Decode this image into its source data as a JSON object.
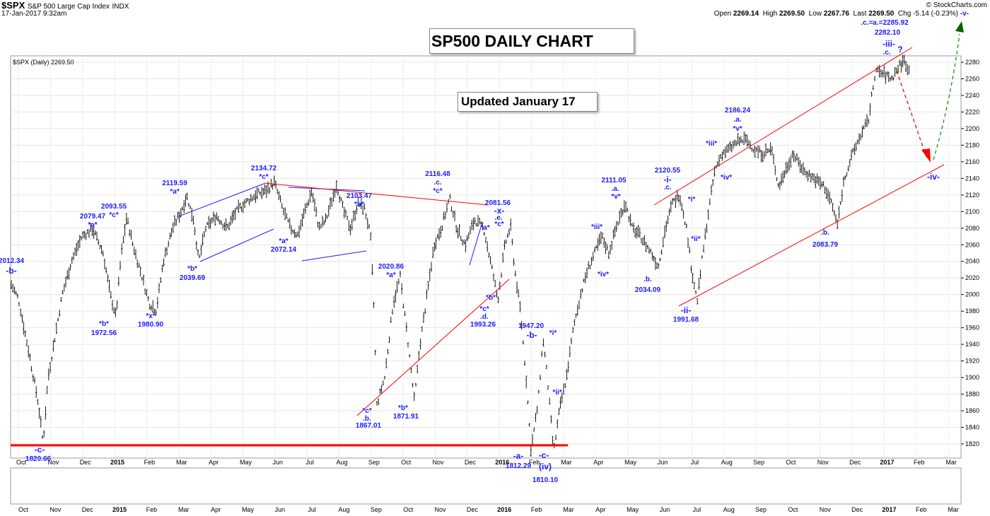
{
  "header": {
    "symbol": "$SPX",
    "name": "S&P 500 Large Cap Index",
    "exchange": "INDX",
    "datetime": "17-Jan-2017 9:32am",
    "credit": "© StockCharts.com",
    "open_label": "Open",
    "open": "2269.14",
    "high_label": "High",
    "high": "2269.50",
    "low_label": "Low",
    "low": "2267.76",
    "last_label": "Last",
    "last": "2269.50",
    "chg_label": "Chg",
    "chg": "-5.14 (-0.23%)",
    "chg_marker": "-v-"
  },
  "legend": "$SPX (Daily) 2269.50",
  "title_box": "SP500 DAILY CHART",
  "updated_box": "Updated January 17",
  "chart_data": {
    "type": "candlestick",
    "y_ticks": [
      1820,
      1840,
      1860,
      1880,
      1900,
      1920,
      1940,
      1960,
      1980,
      2000,
      2020,
      2040,
      2060,
      2080,
      2100,
      2120,
      2140,
      2160,
      2180,
      2200,
      2220,
      2240,
      2260,
      2280
    ],
    "ylim": [
      1808,
      2292
    ],
    "x_months": [
      "Oct",
      "Nov",
      "Dec",
      "2015",
      "Feb",
      "Mar",
      "Apr",
      "May",
      "Jun",
      "Jul",
      "Aug",
      "Sep",
      "Oct",
      "Nov",
      "Dec",
      "2016",
      "Feb",
      "Mar",
      "Apr",
      "May",
      "Jun",
      "Jul",
      "Aug",
      "Sep",
      "Oct",
      "Nov",
      "Dec",
      "2017",
      "Feb",
      "Mar"
    ],
    "x_months_bold": [
      "2015",
      "2016",
      "2017"
    ],
    "price_path": [
      [
        0,
        2012
      ],
      [
        10,
        1995
      ],
      [
        25,
        1930
      ],
      [
        38,
        1870
      ],
      [
        45,
        1821
      ],
      [
        52,
        1900
      ],
      [
        62,
        1950
      ],
      [
        72,
        2000
      ],
      [
        85,
        2040
      ],
      [
        100,
        2070
      ],
      [
        115,
        2079
      ],
      [
        130,
        2050
      ],
      [
        140,
        2000
      ],
      [
        148,
        1973
      ],
      [
        155,
        2045
      ],
      [
        163,
        2093
      ],
      [
        172,
        2060
      ],
      [
        182,
        2030
      ],
      [
        195,
        1990
      ],
      [
        205,
        1981
      ],
      [
        215,
        2040
      ],
      [
        228,
        2080
      ],
      [
        240,
        2100
      ],
      [
        248,
        2119
      ],
      [
        258,
        2090
      ],
      [
        265,
        2040
      ],
      [
        275,
        2080
      ],
      [
        290,
        2095
      ],
      [
        305,
        2080
      ],
      [
        318,
        2100
      ],
      [
        330,
        2110
      ],
      [
        345,
        2120
      ],
      [
        360,
        2125
      ],
      [
        372,
        2135
      ],
      [
        385,
        2100
      ],
      [
        395,
        2080
      ],
      [
        405,
        2072
      ],
      [
        415,
        2100
      ],
      [
        425,
        2125
      ],
      [
        435,
        2080
      ],
      [
        445,
        2090
      ],
      [
        460,
        2133
      ],
      [
        470,
        2100
      ],
      [
        480,
        2080
      ],
      [
        490,
        2110
      ],
      [
        500,
        2103
      ],
      [
        508,
        2070
      ],
      [
        513,
        1980
      ],
      [
        517,
        1867
      ],
      [
        528,
        1900
      ],
      [
        540,
        1990
      ],
      [
        550,
        2021
      ],
      [
        560,
        1950
      ],
      [
        570,
        1872
      ],
      [
        578,
        1940
      ],
      [
        588,
        2000
      ],
      [
        598,
        2060
      ],
      [
        608,
        2080
      ],
      [
        620,
        2116
      ],
      [
        630,
        2080
      ],
      [
        642,
        2060
      ],
      [
        655,
        2090
      ],
      [
        668,
        2080
      ],
      [
        680,
        2030
      ],
      [
        688,
        1993
      ],
      [
        698,
        2060
      ],
      [
        706,
        2082
      ],
      [
        712,
        2030
      ],
      [
        720,
        1980
      ],
      [
        728,
        1900
      ],
      [
        735,
        1812
      ],
      [
        745,
        1870
      ],
      [
        752,
        1947
      ],
      [
        758,
        1900
      ],
      [
        767,
        1810
      ],
      [
        775,
        1860
      ],
      [
        785,
        1900
      ],
      [
        795,
        1960
      ],
      [
        805,
        2000
      ],
      [
        815,
        2030
      ],
      [
        825,
        2050
      ],
      [
        835,
        2070
      ],
      [
        845,
        2050
      ],
      [
        855,
        2080
      ],
      [
        868,
        2111
      ],
      [
        878,
        2080
      ],
      [
        890,
        2070
      ],
      [
        905,
        2050
      ],
      [
        915,
        2034
      ],
      [
        925,
        2080
      ],
      [
        935,
        2110
      ],
      [
        945,
        2121
      ],
      [
        955,
        2080
      ],
      [
        962,
        2030
      ],
      [
        970,
        1992
      ],
      [
        978,
        2050
      ],
      [
        986,
        2100
      ],
      [
        995,
        2150
      ],
      [
        1005,
        2170
      ],
      [
        1015,
        2175
      ],
      [
        1028,
        2185
      ],
      [
        1040,
        2186
      ],
      [
        1050,
        2175
      ],
      [
        1062,
        2170
      ],
      [
        1075,
        2175
      ],
      [
        1085,
        2130
      ],
      [
        1095,
        2150
      ],
      [
        1105,
        2170
      ],
      [
        1120,
        2150
      ],
      [
        1135,
        2140
      ],
      [
        1150,
        2130
      ],
      [
        1160,
        2110
      ],
      [
        1168,
        2084
      ],
      [
        1178,
        2140
      ],
      [
        1190,
        2170
      ],
      [
        1200,
        2190
      ],
      [
        1212,
        2210
      ],
      [
        1222,
        2270
      ],
      [
        1235,
        2265
      ],
      [
        1245,
        2260
      ],
      [
        1255,
        2275
      ],
      [
        1263,
        2282
      ],
      [
        1270,
        2269
      ]
    ],
    "annotations": [
      {
        "text": "2012.34",
        "x": 16,
        "y": 372
      },
      {
        "text": "-b-",
        "x": 16,
        "y": 387,
        "big": true
      },
      {
        "text": "-c-",
        "x": 56,
        "y": 640,
        "big": true
      },
      {
        "text": "1820.66",
        "x": 54,
        "y": 652
      },
      {
        "text": "2079.47",
        "x": 131,
        "y": 309
      },
      {
        "text": "*a*",
        "x": 131,
        "y": 321
      },
      {
        "text": "*b*",
        "x": 147,
        "y": 461
      },
      {
        "text": "1972.56",
        "x": 147,
        "y": 474
      },
      {
        "text": "2093.55",
        "x": 161,
        "y": 295
      },
      {
        "text": "*c*",
        "x": 161,
        "y": 307
      },
      {
        "text": "*x*",
        "x": 213,
        "y": 450
      },
      {
        "text": "1980.90",
        "x": 213,
        "y": 462
      },
      {
        "text": "2119.59",
        "x": 247,
        "y": 262
      },
      {
        "text": "*a*",
        "x": 247,
        "y": 274
      },
      {
        "text": "*b*",
        "x": 272,
        "y": 383
      },
      {
        "text": "2039.69",
        "x": 272,
        "y": 396
      },
      {
        "text": "2134.72",
        "x": 373,
        "y": 241
      },
      {
        "text": "*c*",
        "x": 373,
        "y": 253
      },
      {
        "text": "*a*",
        "x": 401,
        "y": 344
      },
      {
        "text": "2072.14",
        "x": 401,
        "y": 356
      },
      {
        "text": "2103.47",
        "x": 508,
        "y": 280
      },
      {
        "text": "*b*",
        "x": 508,
        "y": 292
      },
      {
        "text": "2020.86",
        "x": 553,
        "y": 380
      },
      {
        "text": "*a*",
        "x": 553,
        "y": 392
      },
      {
        "text": "*c*",
        "x": 519,
        "y": 584
      },
      {
        "text": ".b.",
        "x": 519,
        "y": 595
      },
      {
        "text": "1867.01",
        "x": 521,
        "y": 605
      },
      {
        "text": "*b*",
        "x": 570,
        "y": 580
      },
      {
        "text": "1871.91",
        "x": 574,
        "y": 592
      },
      {
        "text": "2116.48",
        "x": 619,
        "y": 249
      },
      {
        "text": ".c.",
        "x": 619,
        "y": 261
      },
      {
        "text": "*c*",
        "x": 619,
        "y": 273
      },
      {
        "text": "2081.56",
        "x": 704,
        "y": 290
      },
      {
        "text": "-x-",
        "x": 706,
        "y": 302,
        "big": true
      },
      {
        "text": ".e.",
        "x": 705,
        "y": 311
      },
      {
        "text": "*c*",
        "x": 706,
        "y": 320
      },
      {
        "text": "*a*",
        "x": 686,
        "y": 325
      },
      {
        "text": "*b*",
        "x": 694,
        "y": 424
      },
      {
        "text": "*c*",
        "x": 685,
        "y": 440
      },
      {
        "text": ".d.",
        "x": 685,
        "y": 451
      },
      {
        "text": "1993.26",
        "x": 683,
        "y": 462
      },
      {
        "text": "-a-",
        "x": 733,
        "y": 649,
        "big": true
      },
      {
        "text": "1812.29",
        "x": 733,
        "y": 662
      },
      {
        "text": "1947.20",
        "x": 751,
        "y": 464
      },
      {
        "text": "-b-",
        "x": 752,
        "y": 478,
        "big": true
      },
      {
        "text": "*i*",
        "x": 782,
        "y": 474
      },
      {
        "text": "*ii*",
        "x": 788,
        "y": 558
      },
      {
        "text": "-c-",
        "x": 769,
        "y": 648,
        "big": true
      },
      {
        "text": "(iv)",
        "x": 771,
        "y": 664,
        "big": true
      },
      {
        "text": "1810.10",
        "x": 771,
        "y": 682
      },
      {
        "text": "*iii*",
        "x": 844,
        "y": 324
      },
      {
        "text": "*iv*",
        "x": 853,
        "y": 391
      },
      {
        "text": "2111.05",
        "x": 868,
        "y": 258
      },
      {
        "text": ".a.",
        "x": 870,
        "y": 270
      },
      {
        "text": "*v*",
        "x": 871,
        "y": 281
      },
      {
        "text": ".b.",
        "x": 916,
        "y": 398
      },
      {
        "text": "2034.09",
        "x": 916,
        "y": 413
      },
      {
        "text": "2120.55",
        "x": 944,
        "y": 244
      },
      {
        "text": "-i-",
        "x": 944,
        "y": 258,
        "big": true
      },
      {
        "text": ".c.",
        "x": 944,
        "y": 268
      },
      {
        "text": "*i*",
        "x": 978,
        "y": 285
      },
      {
        "text": "*ii*",
        "x": 984,
        "y": 341
      },
      {
        "text": "-ii-",
        "x": 970,
        "y": 443,
        "big": true
      },
      {
        "text": "1991.68",
        "x": 970,
        "y": 455
      },
      {
        "text": "*iii*",
        "x": 1006,
        "y": 206
      },
      {
        "text": "*iv*",
        "x": 1027,
        "y": 254
      },
      {
        "text": "2186.24",
        "x": 1043,
        "y": 159
      },
      {
        "text": ".a.",
        "x": 1043,
        "y": 172
      },
      {
        "text": "*v*",
        "x": 1043,
        "y": 185
      },
      {
        "text": ".b.",
        "x": 1167,
        "y": 332
      },
      {
        "text": "2083.79",
        "x": 1167,
        "y": 349
      },
      {
        "text": ".c.=a.=2285.92",
        "x": 1251,
        "y": 35
      },
      {
        "text": "2282.10",
        "x": 1255,
        "y": 49
      },
      {
        "text": "-iii-",
        "x": 1257,
        "y": 66,
        "big": true
      },
      {
        "text": ".c.",
        "x": 1254,
        "y": 77
      },
      {
        "text": "?",
        "x": 1273,
        "y": 74,
        "big": true
      },
      {
        "text": "-iv-",
        "x": 1320,
        "y": 254,
        "big": true
      }
    ]
  }
}
